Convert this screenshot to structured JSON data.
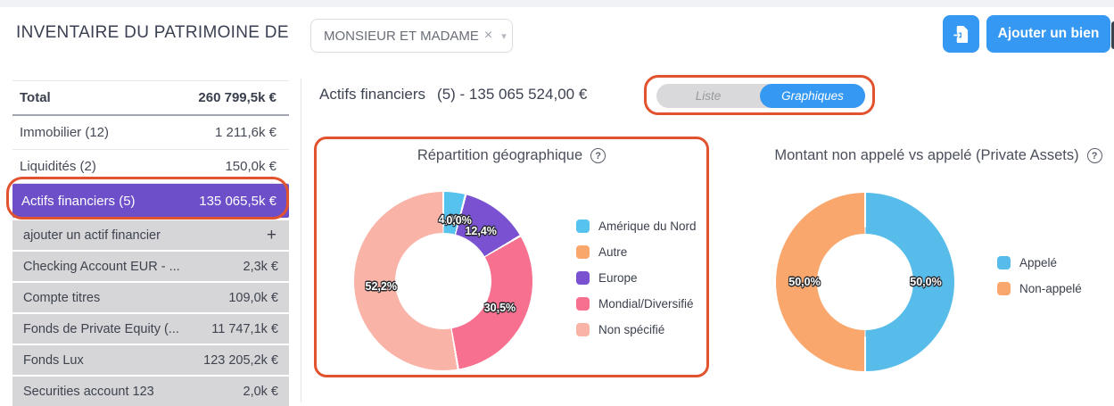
{
  "header": {
    "title": "INVENTAIRE DU PATRIMOINE DE",
    "owner_select": {
      "value": "MONSIEUR ET MADAME",
      "clear_icon": "×",
      "caret_icon": "▾"
    },
    "add_button_label": "Ajouter un bien"
  },
  "icons": {
    "help": "?"
  },
  "sidebar": {
    "total": {
      "label": "Total",
      "value": "260 799,5k €"
    },
    "categories": [
      {
        "label": "Immobilier (12)",
        "value": "1 211,6k €"
      },
      {
        "label": "Liquidités (2)",
        "value": "150,0k €"
      },
      {
        "label": "Actifs financiers (5)",
        "value": "135 065,5k €",
        "active": true
      }
    ],
    "add_row": {
      "label": "ajouter un actif financier",
      "icon": "+"
    },
    "assets": [
      {
        "label": "Checking Account EUR - ...",
        "value": "2,3k €"
      },
      {
        "label": "Compte titres",
        "value": "109,0k €"
      },
      {
        "label": "Fonds de Private Equity (...",
        "value": "11 747,1k €"
      },
      {
        "label": "Fonds Lux",
        "value": "123 205,2k €"
      },
      {
        "label": "Securities account 123",
        "value": "2,0k €"
      }
    ]
  },
  "main": {
    "section_title": "Actifs financiers",
    "section_subtitle": "(5) - 135 065 524,00 €",
    "view_toggle": {
      "liste_label": "Liste",
      "graphiques_label": "Graphiques",
      "selected": "Graphiques"
    }
  },
  "chart_data": [
    {
      "type": "pie",
      "variant": "donut",
      "title": "Répartition géographique",
      "categories": [
        "Amérique du Nord",
        "Autre",
        "Europe",
        "Mondial/Diversifié",
        "Non spécifié"
      ],
      "values": [
        4.0,
        0.0,
        12.4,
        30.5,
        52.2
      ],
      "labels": [
        "4,0%",
        "0,0%",
        "12,4%",
        "30,5%",
        "52,2%"
      ],
      "colors": [
        "#56c2ee",
        "#faa76c",
        "#7a52d1",
        "#f8708f",
        "#f9b3a7"
      ],
      "legend_position": "right",
      "start_angle_deg": 0,
      "direction": "clockwise",
      "label_radius": 70
    },
    {
      "type": "pie",
      "variant": "donut",
      "title": "Montant non appelé vs appelé (Private Assets)",
      "categories": [
        "Appelé",
        "Non-appelé"
      ],
      "values": [
        50.0,
        50.0
      ],
      "labels": [
        "50,0%",
        "50,0%"
      ],
      "colors": [
        "#57bce9",
        "#f9a76c"
      ],
      "legend_position": "right",
      "start_angle_deg": 0,
      "direction": "clockwise",
      "label_radius": 68
    }
  ],
  "colors": {
    "accent_blue": "#3598f2",
    "active_purple": "#6d4fc9",
    "annotation_red": "#e2522e",
    "sidebar_row_gray": "#d6d6d8"
  }
}
